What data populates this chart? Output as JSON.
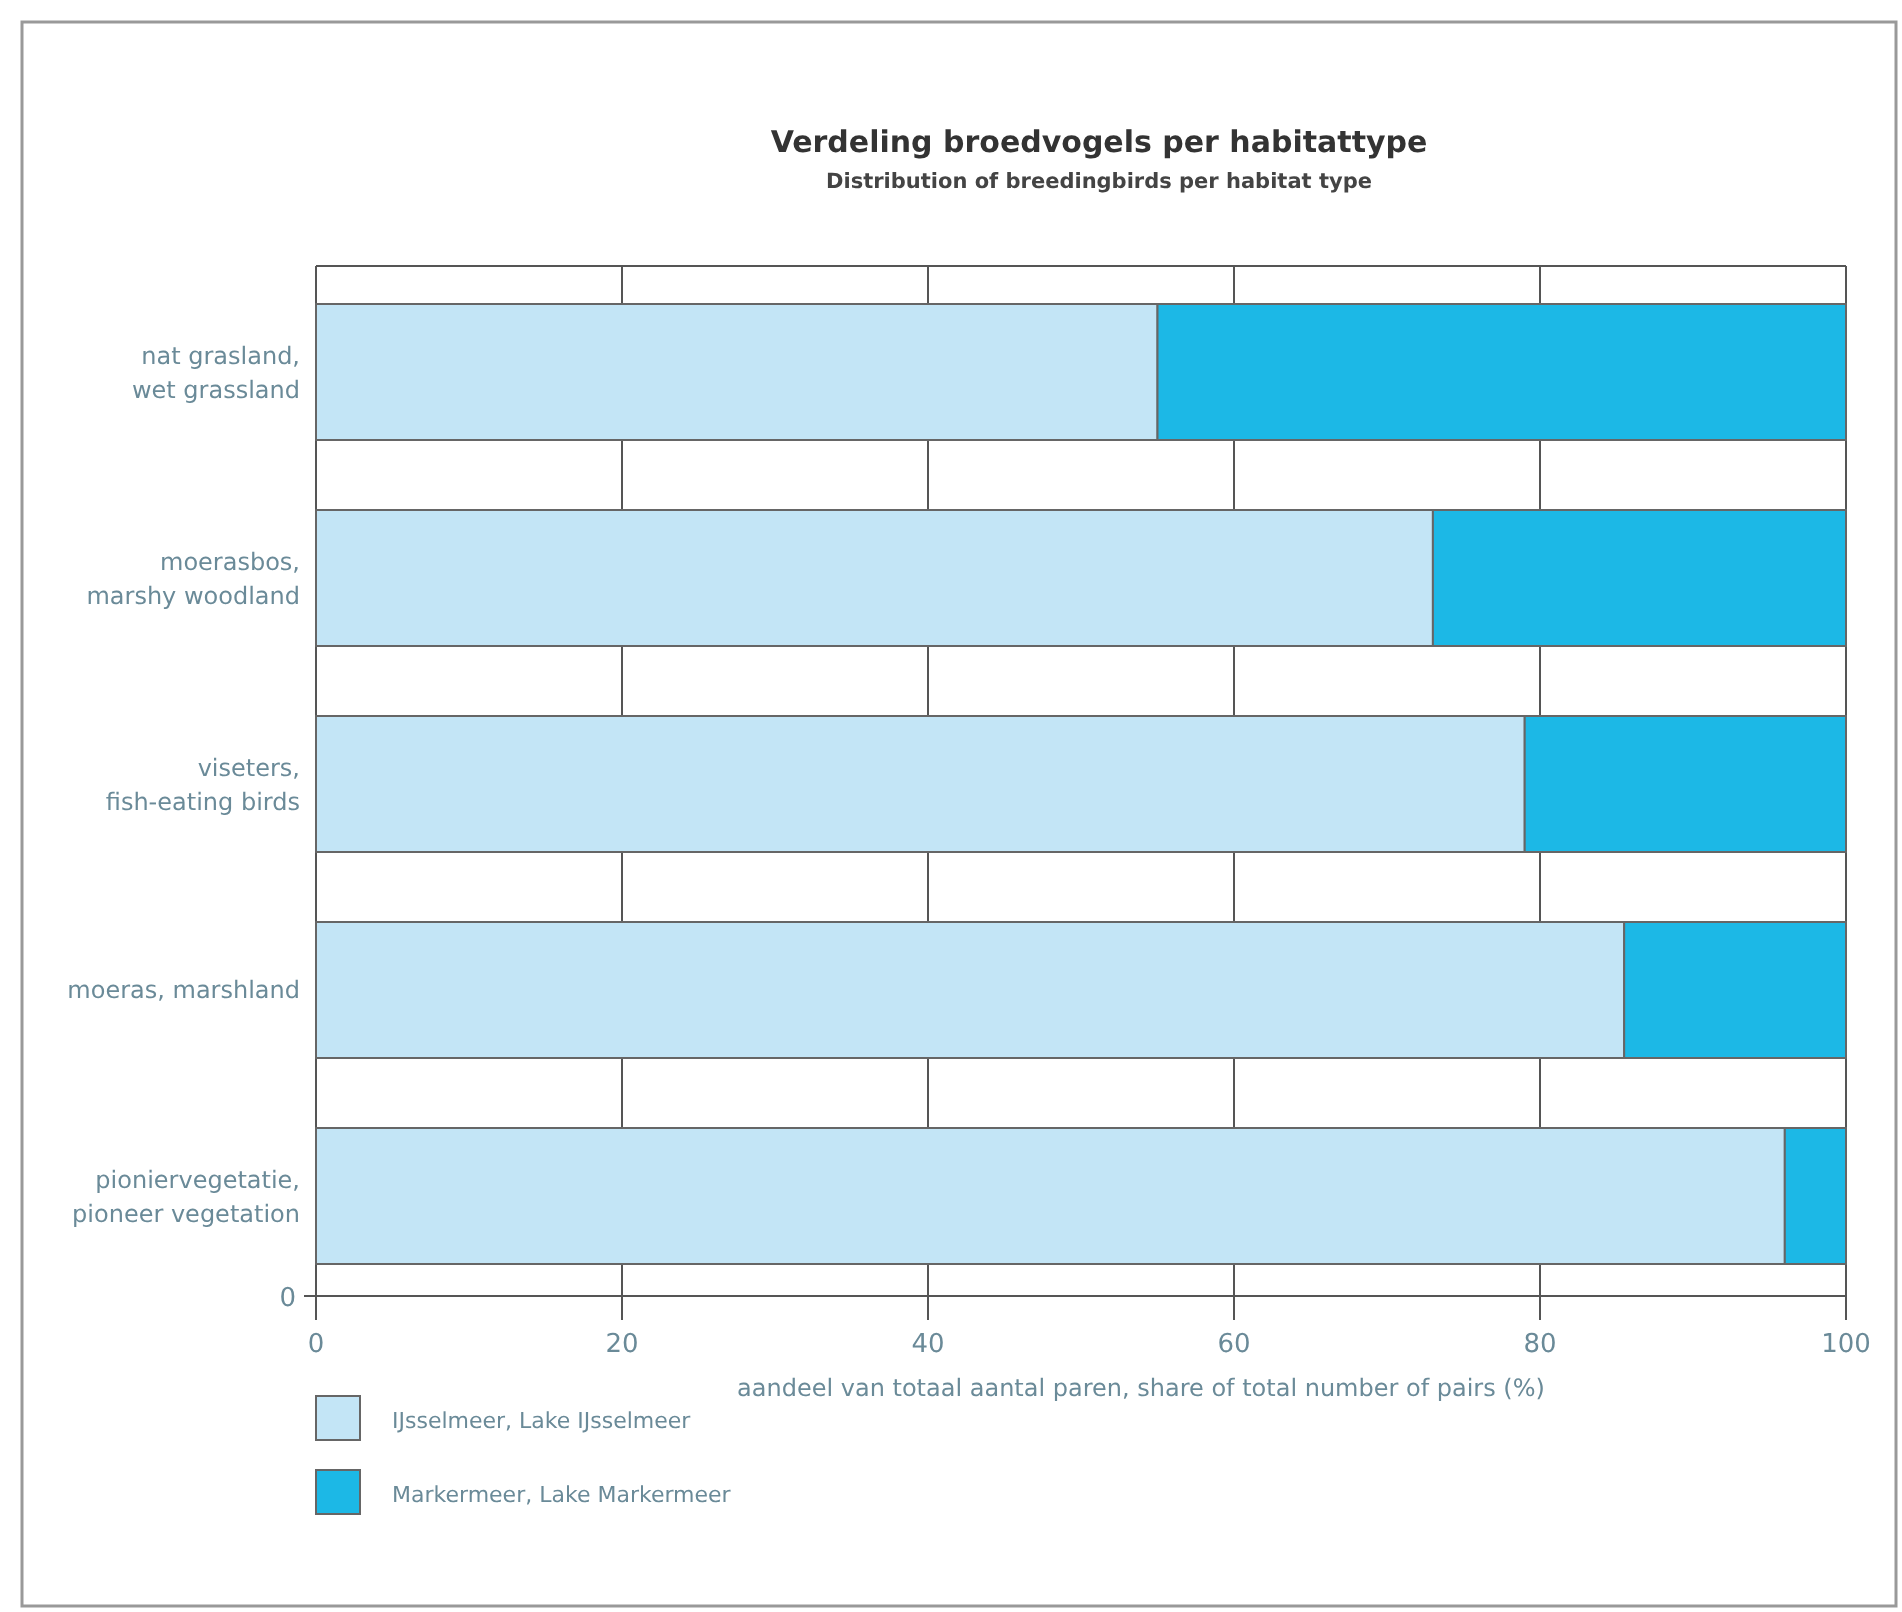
{
  "chart_data": {
    "type": "bar",
    "orientation": "horizontal",
    "stacked": true,
    "title": "Verdeling broedvogels per habitattype",
    "subtitle": "Distribution of breedingbirds per habitat type",
    "categories": [
      "nat grasland,\nwet grassland",
      "moerasbos,\nmarshy woodland",
      "viseters,\nfish-eating birds",
      "moeras, marshland",
      "pioniervegetatie,\npioneer vegetation"
    ],
    "series": [
      {
        "name": "IJsselmeer, Lake IJsselmeer",
        "color": "#c3e5f6",
        "values": [
          55,
          73,
          79,
          85.5,
          96
        ]
      },
      {
        "name": "Markermeer, Lake Markermeer",
        "color": "#1cb8e6",
        "values": [
          45,
          27,
          21,
          14.5,
          4
        ]
      }
    ],
    "xlim": [
      0,
      100
    ],
    "xticks": [
      0,
      20,
      40,
      60,
      80,
      100
    ],
    "xlabel": "aandeel van totaal aantal paren, share of total number of pairs (%)",
    "grid": "x",
    "legend": "bottom left",
    "annotations": [
      "0"
    ]
  }
}
